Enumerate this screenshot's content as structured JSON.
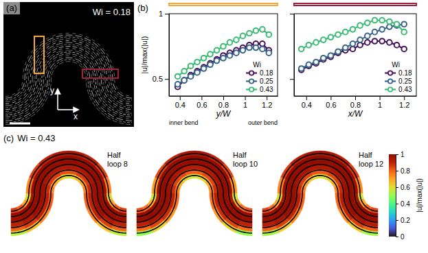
{
  "chart_data": [
    {
      "type": "image",
      "panel_label": "(a)",
      "title": "Wi = 0.18",
      "x_label": "x",
      "y_label": "y"
    },
    {
      "type": "line",
      "panel_label": "(b)",
      "color": "#f4a93a",
      "x_label": "y/W",
      "y_label": "|u|/max(|u|)",
      "annotations": [
        "inner bend",
        "outer bend"
      ],
      "xlim": [
        0.3,
        1.3
      ],
      "xticks": [
        0.4,
        0.6,
        0.8,
        1,
        1.2
      ],
      "ylim": [
        0.37,
        1
      ],
      "yticks": [
        0.5,
        1
      ],
      "legend": "lower right",
      "legend_title": "Wi",
      "marker": "circle",
      "x": [
        0.38,
        0.44,
        0.5,
        0.56,
        0.62,
        0.68,
        0.74,
        0.8,
        0.86,
        0.92,
        0.98,
        1.04,
        1.1,
        1.16,
        1.22
      ],
      "series": [
        {
          "name": "0.18",
          "color": "#45125a",
          "values": [
            0.44,
            0.49,
            0.53,
            0.56,
            0.59,
            0.62,
            0.65,
            0.68,
            0.7,
            0.72,
            0.74,
            0.76,
            0.77,
            0.77,
            0.72
          ]
        },
        {
          "name": "0.25",
          "color": "#39648a",
          "values": [
            0.46,
            0.49,
            0.52,
            0.55,
            0.58,
            0.61,
            0.64,
            0.66,
            0.68,
            0.7,
            0.72,
            0.74,
            0.74,
            0.73,
            0.7
          ]
        },
        {
          "name": "0.43",
          "color": "#3cbb75",
          "values": [
            0.52,
            0.56,
            0.6,
            0.63,
            0.66,
            0.69,
            0.72,
            0.75,
            0.78,
            0.8,
            0.83,
            0.85,
            0.87,
            0.88,
            0.84
          ]
        }
      ]
    },
    {
      "type": "line",
      "color": "#a3203d",
      "x_label": "x/W",
      "tick_labels": "x",
      "xlim": [
        0.3,
        1.3
      ],
      "xticks": [
        0.4,
        0.6,
        0.8,
        1,
        1.2
      ],
      "ylim": [
        0.37,
        1
      ],
      "yticks": [
        0.5,
        1
      ],
      "legend": "lower right",
      "legend_title": "Wi",
      "marker": "circle",
      "x": [
        0.36,
        0.42,
        0.48,
        0.54,
        0.6,
        0.66,
        0.72,
        0.78,
        0.84,
        0.9,
        0.96,
        1.02,
        1.08,
        1.14,
        1.2
      ],
      "series": [
        {
          "name": "0.18",
          "color": "#45125a",
          "values": [
            0.57,
            0.6,
            0.62,
            0.65,
            0.67,
            0.7,
            0.72,
            0.73,
            0.76,
            0.78,
            0.79,
            0.79,
            0.78,
            0.76,
            0.73
          ]
        },
        {
          "name": "0.25",
          "color": "#39648a",
          "values": [
            0.58,
            0.61,
            0.63,
            0.66,
            0.68,
            0.71,
            0.74,
            0.77,
            0.8,
            0.83,
            0.86,
            0.88,
            0.9,
            0.91,
            0.92
          ]
        },
        {
          "name": "0.43",
          "color": "#3cbb75",
          "values": [
            0.73,
            0.76,
            0.78,
            0.8,
            0.82,
            0.84,
            0.86,
            0.88,
            0.91,
            0.93,
            0.95,
            0.95,
            0.94,
            0.92,
            0.86
          ]
        }
      ]
    },
    {
      "type": "heatmap",
      "panel_label": "(c)",
      "title": "Wi = 0.43",
      "panels": [
        {
          "title": "Half loop 8",
          "cells": [
            [
              0.55,
              0.65,
              0.75,
              0.8,
              0.75,
              0.7,
              0.65,
              0.6,
              0.6,
              0.65,
              0.7,
              0.75,
              0.8,
              0.75,
              0.65,
              0.55
            ],
            [
              0.8,
              0.85,
              0.9,
              0.9,
              0.88,
              0.85,
              0.85,
              0.82,
              0.82,
              0.85,
              0.85,
              0.88,
              0.9,
              0.9,
              0.85,
              0.8
            ],
            [
              0.9,
              0.92,
              0.95,
              0.95,
              0.95,
              0.93,
              0.92,
              0.92,
              0.92,
              0.92,
              0.93,
              0.95,
              0.95,
              0.95,
              0.92,
              0.9
            ],
            [
              0.95,
              0.97,
              0.98,
              0.97,
              0.97,
              0.98,
              0.98,
              0.97,
              0.97,
              0.98,
              0.98,
              0.97,
              0.97,
              0.98,
              0.97,
              0.95
            ],
            [
              0.97,
              0.98,
              0.97,
              0.93,
              0.95,
              0.97,
              0.98,
              0.98,
              0.98,
              0.98,
              0.97,
              0.95,
              0.93,
              0.97,
              0.98,
              0.97
            ],
            [
              0.85,
              0.8,
              0.7,
              0.6,
              0.75,
              0.85,
              0.9,
              0.92,
              0.92,
              0.9,
              0.85,
              0.75,
              0.6,
              0.7,
              0.8,
              0.85
            ]
          ]
        },
        {
          "title": "Half loop 10",
          "cells": [
            [
              0.5,
              0.62,
              0.72,
              0.78,
              0.74,
              0.68,
              0.62,
              0.58,
              0.58,
              0.62,
              0.68,
              0.74,
              0.78,
              0.72,
              0.62,
              0.5
            ],
            [
              0.78,
              0.84,
              0.88,
              0.9,
              0.87,
              0.84,
              0.83,
              0.8,
              0.8,
              0.83,
              0.84,
              0.87,
              0.9,
              0.88,
              0.84,
              0.78
            ],
            [
              0.9,
              0.93,
              0.95,
              0.96,
              0.95,
              0.93,
              0.92,
              0.91,
              0.91,
              0.92,
              0.93,
              0.95,
              0.96,
              0.95,
              0.93,
              0.9
            ],
            [
              0.96,
              0.98,
              0.98,
              0.97,
              0.98,
              0.98,
              0.97,
              0.97,
              0.97,
              0.97,
              0.98,
              0.98,
              0.97,
              0.98,
              0.98,
              0.96
            ],
            [
              0.97,
              0.97,
              0.95,
              0.92,
              0.95,
              0.97,
              0.98,
              0.99,
              0.99,
              0.98,
              0.97,
              0.95,
              0.92,
              0.95,
              0.97,
              0.97
            ],
            [
              0.82,
              0.78,
              0.68,
              0.58,
              0.72,
              0.84,
              0.9,
              0.93,
              0.93,
              0.9,
              0.84,
              0.72,
              0.58,
              0.68,
              0.78,
              0.82
            ]
          ]
        },
        {
          "title": "Half loop 12",
          "cells": [
            [
              0.52,
              0.64,
              0.74,
              0.79,
              0.76,
              0.7,
              0.64,
              0.6,
              0.59,
              0.63,
              0.69,
              0.75,
              0.79,
              0.74,
              0.64,
              0.52
            ],
            [
              0.8,
              0.85,
              0.89,
              0.91,
              0.88,
              0.85,
              0.84,
              0.81,
              0.81,
              0.84,
              0.85,
              0.88,
              0.91,
              0.89,
              0.85,
              0.8
            ],
            [
              0.91,
              0.93,
              0.96,
              0.96,
              0.95,
              0.94,
              0.93,
              0.92,
              0.92,
              0.93,
              0.94,
              0.95,
              0.96,
              0.96,
              0.93,
              0.91
            ],
            [
              0.96,
              0.98,
              0.99,
              0.98,
              0.98,
              0.98,
              0.98,
              0.97,
              0.97,
              0.98,
              0.98,
              0.98,
              0.98,
              0.99,
              0.98,
              0.96
            ],
            [
              0.97,
              0.98,
              0.96,
              0.93,
              0.95,
              0.97,
              0.99,
              0.99,
              0.99,
              0.99,
              0.97,
              0.95,
              0.93,
              0.96,
              0.98,
              0.97
            ],
            [
              0.84,
              0.79,
              0.69,
              0.59,
              0.74,
              0.85,
              0.91,
              0.93,
              0.93,
              0.91,
              0.85,
              0.74,
              0.59,
              0.69,
              0.79,
              0.84
            ]
          ]
        }
      ],
      "colorbar": {
        "label": "|u|/max(|u|)",
        "range": [
          0,
          1
        ],
        "ticks": [
          0,
          0.2,
          0.4,
          0.6,
          0.8,
          1
        ]
      }
    }
  ]
}
